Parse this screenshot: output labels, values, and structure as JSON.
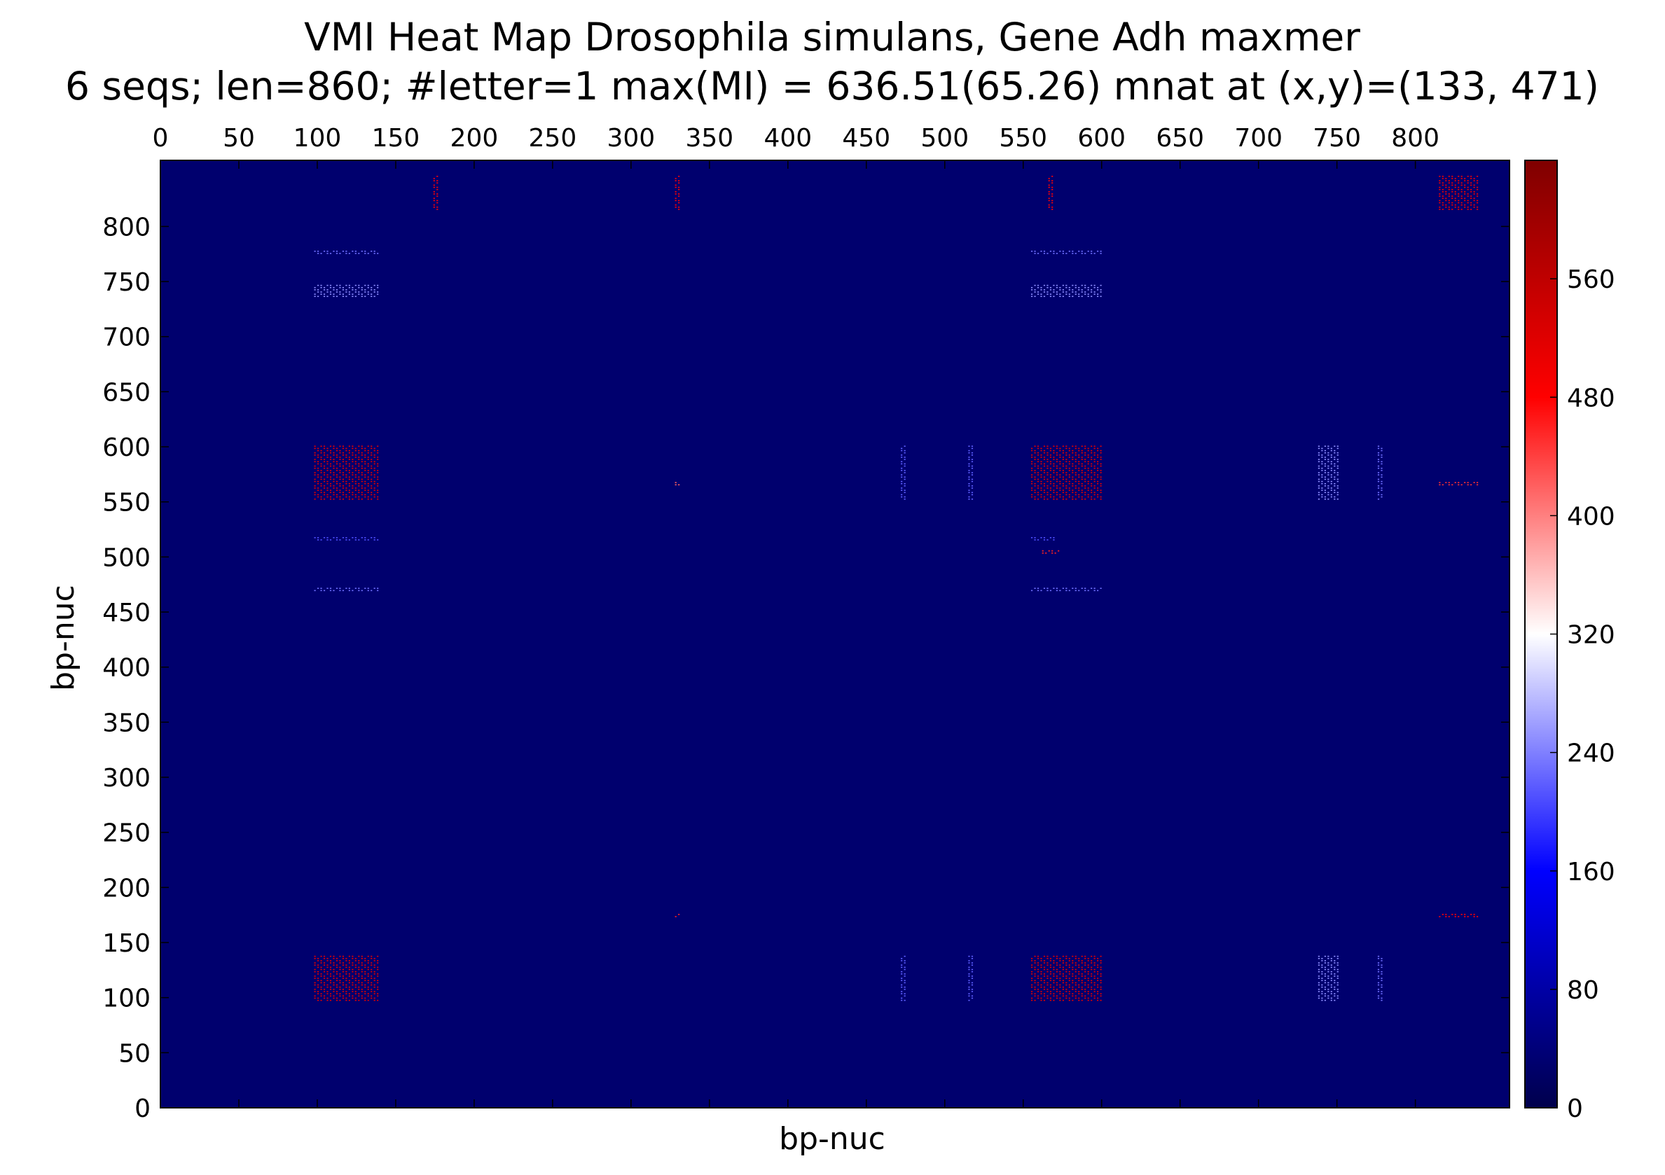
{
  "chart_data": {
    "type": "heatmap",
    "title": "VMI Heat Map Drosophila simulans, Gene Adh maxmer",
    "subtitle": "6 seqs; len=860; #letter=1 max(MI) = 636.51(65.26) mnat at (x,y)=(133, 471)",
    "xlabel": "bp-nuc",
    "ylabel": "bp-nuc",
    "xlim": [
      0,
      860
    ],
    "ylim": [
      0,
      860
    ],
    "x_ticks": [
      0,
      50,
      100,
      150,
      200,
      250,
      300,
      350,
      400,
      450,
      500,
      550,
      600,
      650,
      700,
      750,
      800
    ],
    "y_ticks": [
      0,
      50,
      100,
      150,
      200,
      250,
      300,
      350,
      400,
      450,
      500,
      550,
      600,
      650,
      700,
      750,
      800
    ],
    "x_tick_position": "top",
    "grid": false,
    "colormap": "seismic",
    "colorbar": {
      "range": [
        0,
        640
      ],
      "ticks": [
        0,
        80,
        160,
        240,
        320,
        400,
        480,
        560
      ],
      "colors": [
        "#00004c",
        "#0000ff",
        "#ffffff",
        "#ff0000",
        "#7f0000"
      ]
    },
    "background_value": 30,
    "blocks": [
      {
        "x": [
          98,
          138
        ],
        "y": [
          97,
          138
        ],
        "value": 520
      },
      {
        "x": [
          98,
          138
        ],
        "y": [
          552,
          600
        ],
        "value": 520
      },
      {
        "x": [
          555,
          600
        ],
        "y": [
          97,
          138
        ],
        "value": 520
      },
      {
        "x": [
          555,
          600
        ],
        "y": [
          552,
          600
        ],
        "value": 520
      },
      {
        "x": [
          98,
          138
        ],
        "y": [
          736,
          746
        ],
        "value": 250
      },
      {
        "x": [
          555,
          600
        ],
        "y": [
          736,
          746
        ],
        "value": 250
      },
      {
        "x": [
          98,
          138
        ],
        "y": [
          775,
          777
        ],
        "value": 230
      },
      {
        "x": [
          555,
          600
        ],
        "y": [
          775,
          777
        ],
        "value": 230
      },
      {
        "x": [
          98,
          138
        ],
        "y": [
          469,
          471
        ],
        "value": 230
      },
      {
        "x": [
          555,
          600
        ],
        "y": [
          469,
          471
        ],
        "value": 230
      },
      {
        "x": [
          98,
          138
        ],
        "y": [
          515,
          517
        ],
        "value": 210
      },
      {
        "x": [
          555,
          570
        ],
        "y": [
          515,
          517
        ],
        "value": 210
      },
      {
        "x": [
          472,
          474
        ],
        "y": [
          97,
          138
        ],
        "value": 220
      },
      {
        "x": [
          472,
          474
        ],
        "y": [
          552,
          600
        ],
        "value": 220
      },
      {
        "x": [
          515,
          518
        ],
        "y": [
          97,
          138
        ],
        "value": 220
      },
      {
        "x": [
          515,
          518
        ],
        "y": [
          552,
          600
        ],
        "value": 220
      },
      {
        "x": [
          738,
          750
        ],
        "y": [
          97,
          138
        ],
        "value": 250
      },
      {
        "x": [
          738,
          750
        ],
        "y": [
          552,
          600
        ],
        "value": 250
      },
      {
        "x": [
          776,
          778
        ],
        "y": [
          97,
          138
        ],
        "value": 230
      },
      {
        "x": [
          776,
          778
        ],
        "y": [
          552,
          600
        ],
        "value": 230
      },
      {
        "x": [
          174,
          176
        ],
        "y": [
          815,
          845
        ],
        "value": 480
      },
      {
        "x": [
          328,
          330
        ],
        "y": [
          815,
          845
        ],
        "value": 480
      },
      {
        "x": [
          566,
          568
        ],
        "y": [
          815,
          845
        ],
        "value": 480
      },
      {
        "x": [
          815,
          840
        ],
        "y": [
          815,
          845
        ],
        "value": 500
      },
      {
        "x": [
          815,
          840
        ],
        "y": [
          173,
          175
        ],
        "value": 480
      },
      {
        "x": [
          815,
          840
        ],
        "y": [
          565,
          567
        ],
        "value": 450
      },
      {
        "x": [
          328,
          330
        ],
        "y": [
          173,
          175
        ],
        "value": 460
      },
      {
        "x": [
          328,
          330
        ],
        "y": [
          565,
          567
        ],
        "value": 420
      },
      {
        "x": [
          562,
          572
        ],
        "y": [
          503,
          505
        ],
        "value": 460
      }
    ]
  }
}
